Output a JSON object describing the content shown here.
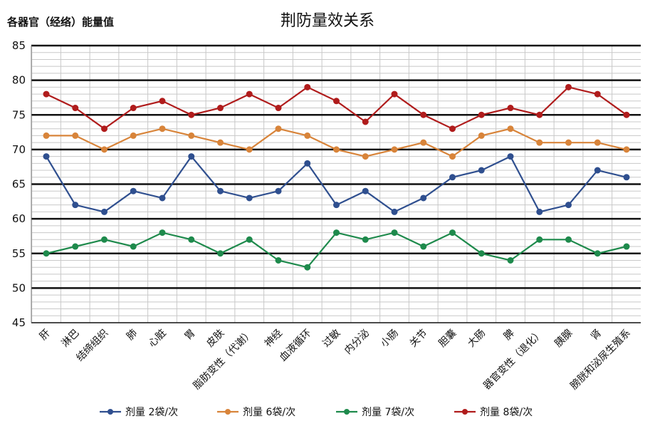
{
  "chart_data": {
    "type": "line",
    "title": "荆防量效关系",
    "ylabel": "各器官（经络）能量值",
    "xlabel": "",
    "ylim": [
      45,
      85
    ],
    "yticks": [
      45,
      50,
      55,
      60,
      65,
      70,
      75,
      80,
      85
    ],
    "grid": true,
    "legend_position": "bottom",
    "categories": [
      "肝",
      "淋巴",
      "结缔组织",
      "肺",
      "心脏",
      "胃",
      "皮肤",
      "脂肪变性（代谢）",
      "神经",
      "血液循环",
      "过敏",
      "内分泌",
      "小肠",
      "关节",
      "胆囊",
      "大肠",
      "脾",
      "器官变性（退化）",
      "胰腺",
      "肾",
      "膀胱和泌尿生殖系"
    ],
    "series": [
      {
        "name": "剂量 2袋/次",
        "color": "#2f4f8f",
        "values": [
          69,
          62,
          61,
          64,
          63,
          69,
          64,
          63,
          64,
          68,
          62,
          64,
          61,
          63,
          66,
          67,
          69,
          61,
          62,
          67,
          66
        ]
      },
      {
        "name": "剂量 6袋/次",
        "color": "#d8843a",
        "values": [
          72,
          72,
          70,
          72,
          73,
          72,
          71,
          70,
          73,
          72,
          70,
          69,
          70,
          71,
          69,
          72,
          73,
          71,
          71,
          71,
          70
        ]
      },
      {
        "name": "剂量 7袋/次",
        "color": "#1e8a4c",
        "values": [
          55,
          56,
          57,
          56,
          58,
          57,
          55,
          57,
          54,
          53,
          58,
          57,
          58,
          56,
          58,
          55,
          54,
          57,
          57,
          55,
          56
        ]
      },
      {
        "name": "剂量 8袋/次",
        "color": "#b01c1c",
        "values": [
          78,
          76,
          73,
          76,
          77,
          75,
          76,
          78,
          76,
          79,
          77,
          74,
          78,
          75,
          73,
          75,
          76,
          75,
          79,
          78,
          75
        ]
      }
    ]
  }
}
